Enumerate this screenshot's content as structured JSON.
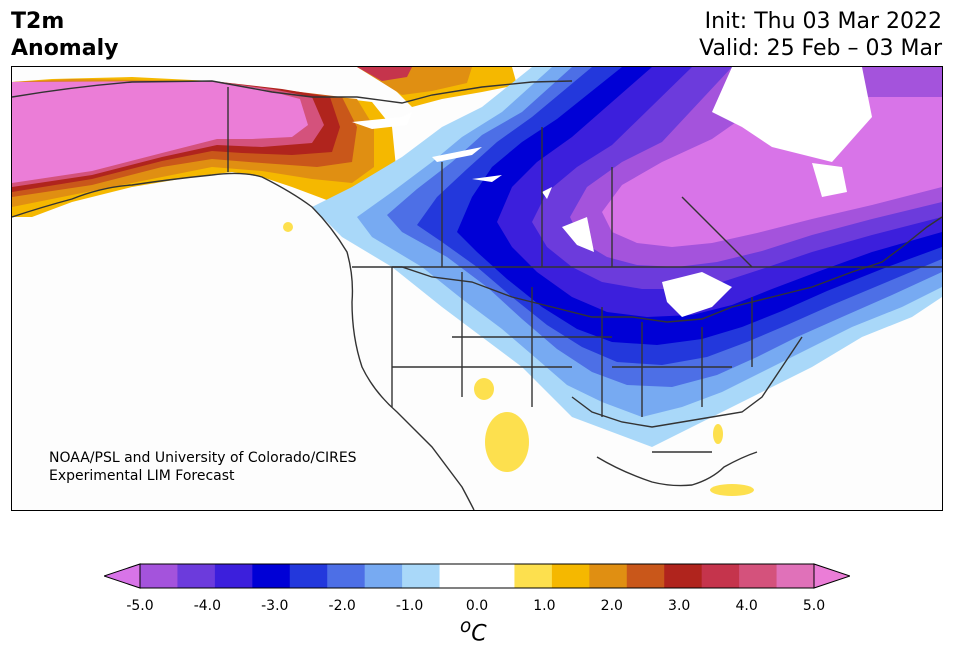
{
  "header": {
    "variable": "T2m",
    "quantity": "Anomaly",
    "init": "Init: Thu 03 Mar 2022",
    "valid": "Valid: 25 Feb – 03 Mar"
  },
  "credit": {
    "line1": "NOAA/PSL and University of Colorado/CIRES",
    "line2": "Experimental LIM Forecast"
  },
  "colorbar": {
    "ticks": [
      "-5.0",
      "-4.0",
      "-3.0",
      "-2.0",
      "-1.0",
      "0.0",
      "1.0",
      "2.0",
      "3.0",
      "4.0",
      "5.0"
    ],
    "unit_super": "o",
    "unit": "C",
    "colors": [
      "#d874e8",
      "#a453dc",
      "#6c3bdc",
      "#3c1fdc",
      "#0000d6",
      "#2338dc",
      "#4d6fe6",
      "#77aaf2",
      "#a9d8f9",
      "#ffffff",
      "#ffffff",
      "#fde04e",
      "#f5b800",
      "#e08f12",
      "#c9571a",
      "#b0241d",
      "#c5344c",
      "#d4527c",
      "#e071b9",
      "#eb7dd7"
    ]
  },
  "map": {
    "region": "North America",
    "palette": {
      "strong_warm": "#eb7dd7",
      "strong_cold": "#d874e8",
      "cold_core": "#0000d6",
      "land_neutral": "#fdfdfd",
      "coastline": "#333333"
    }
  }
}
